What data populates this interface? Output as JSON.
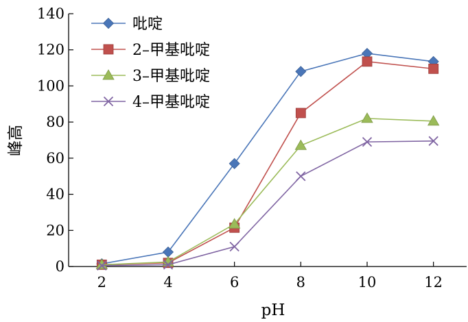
{
  "chart_data": {
    "type": "line",
    "xlabel": "pH",
    "ylabel": "峰高",
    "x": [
      2,
      4,
      6,
      8,
      10,
      12
    ],
    "xticks": [
      "2",
      "4",
      "6",
      "8",
      "10",
      "12"
    ],
    "yticks": [
      "0",
      "20",
      "40",
      "60",
      "80",
      "100",
      "120",
      "140"
    ],
    "ylim": [
      0,
      140
    ],
    "grid": false,
    "legend_position": "top-left",
    "series": [
      {
        "name": "吡啶",
        "color": "#4a76b8",
        "marker": "diamond",
        "values": [
          1.5,
          8,
          57,
          108,
          118,
          113.5
        ]
      },
      {
        "name": "2–甲基吡啶",
        "color": "#c0504d",
        "marker": "square",
        "values": [
          1,
          2,
          21.5,
          85,
          113.5,
          109.5
        ]
      },
      {
        "name": "3–甲基吡啶",
        "color": "#9bbb59",
        "marker": "triangle",
        "values": [
          1,
          2.5,
          23.5,
          67,
          82,
          80.5
        ]
      },
      {
        "name": "4–甲基吡啶",
        "color": "#7f64a2",
        "marker": "x",
        "values": [
          0.5,
          1,
          11,
          50,
          69,
          69.5
        ]
      }
    ]
  }
}
